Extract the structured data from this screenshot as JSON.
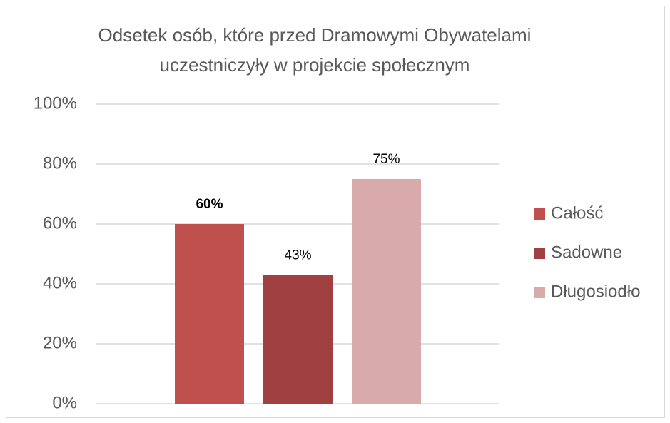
{
  "chart_data": {
    "type": "bar",
    "title": "Odsetek osób, które przed Dramowymi Obywatelami uczestniczyły w projekcie społecznym",
    "categories": [
      null
    ],
    "series": [
      {
        "name": "Całość",
        "color": "#c0504d",
        "values": [
          60
        ],
        "value_labels": [
          "60%"
        ]
      },
      {
        "name": "Sadowne",
        "color": "#a04040",
        "values": [
          43
        ],
        "value_labels": [
          "43%"
        ]
      },
      {
        "name": "Długosiodło",
        "color": "#d9aaaa",
        "values": [
          75
        ],
        "value_labels": [
          "75%"
        ]
      }
    ],
    "ylim": [
      0,
      100
    ],
    "yticks": [
      {
        "value": 0,
        "label": "0%"
      },
      {
        "value": 20,
        "label": "20%"
      },
      {
        "value": 40,
        "label": "40%"
      },
      {
        "value": 60,
        "label": "60%"
      },
      {
        "value": 80,
        "label": "80%"
      },
      {
        "value": 100,
        "label": "100%"
      }
    ],
    "grid": true,
    "legend": "right"
  }
}
